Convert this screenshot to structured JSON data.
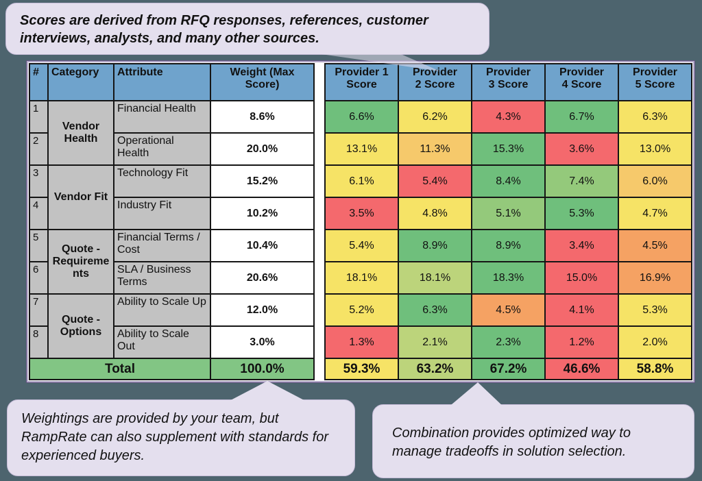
{
  "palette": {
    "green": "#6FBF7C",
    "light_green": "#94C97B",
    "yellow_green": "#BCD47B",
    "yellow": "#F6E366",
    "orange_yellow": "#F6C96B",
    "orange": "#F5A263",
    "red": "#F4696D",
    "header_blue": "#6FA3CC",
    "gray": "#C2C2C2",
    "total_green": "#82C584",
    "frame_purple": "#5E527E",
    "background": "#4D646E",
    "callout_bg": "#E4DFEE"
  },
  "callouts": {
    "top": "Scores are derived from RFQ responses, references, customer interviews, analysts, and many other sources.",
    "bottom_left": "Weightings are provided by your team, but RampRate can also supplement with standards for experienced buyers.",
    "bottom_right": "Combination provides optimized way to manage tradeoffs in solution selection."
  },
  "weights_table": {
    "headers": [
      "#",
      "Category",
      "Attribute",
      "Weight (Max\nScore)"
    ],
    "categories": [
      {
        "name": "Vendor Health"
      },
      {
        "name": "Vendor Fit"
      },
      {
        "name": "Quote - Requirements"
      },
      {
        "name": "Quote - Options"
      }
    ],
    "rows": [
      {
        "num": "1",
        "attribute": "Financial Health",
        "weight": "8.6%"
      },
      {
        "num": "2",
        "attribute": "Operational Health",
        "weight": "20.0%"
      },
      {
        "num": "3",
        "attribute": "Technology Fit",
        "weight": "15.2%"
      },
      {
        "num": "4",
        "attribute": "Industry Fit",
        "weight": "10.2%"
      },
      {
        "num": "5",
        "attribute": "Financial Terms / Cost",
        "weight": "10.4%"
      },
      {
        "num": "6",
        "attribute": "SLA / Business Terms",
        "weight": "20.6%"
      },
      {
        "num": "7",
        "attribute": "Ability to Scale Up",
        "weight": "12.0%"
      },
      {
        "num": "8",
        "attribute": "Ability to Scale Out",
        "weight": "3.0%"
      }
    ],
    "total_label": "Total",
    "total_weight": "100.0%"
  },
  "scores_table": {
    "headers": [
      "Provider 1\nScore",
      "Provider\n2 Score",
      "Provider\n3 Score",
      "Provider\n4 Score",
      "Provider\n5 Score"
    ],
    "rows": [
      {
        "values": [
          "6.6%",
          "6.2%",
          "4.3%",
          "6.7%",
          "6.3%"
        ],
        "colors": [
          "green",
          "yellow",
          "red",
          "green",
          "yellow"
        ]
      },
      {
        "values": [
          "13.1%",
          "11.3%",
          "15.3%",
          "3.6%",
          "13.0%"
        ],
        "colors": [
          "yellow",
          "orange_yellow",
          "green",
          "red",
          "yellow"
        ]
      },
      {
        "values": [
          "6.1%",
          "5.4%",
          "8.4%",
          "7.4%",
          "6.0%"
        ],
        "colors": [
          "yellow",
          "red",
          "green",
          "light_green",
          "orange_yellow"
        ]
      },
      {
        "values": [
          "3.5%",
          "4.8%",
          "5.1%",
          "5.3%",
          "4.7%"
        ],
        "colors": [
          "red",
          "yellow",
          "light_green",
          "green",
          "yellow"
        ]
      },
      {
        "values": [
          "5.4%",
          "8.9%",
          "8.9%",
          "3.4%",
          "4.5%"
        ],
        "colors": [
          "yellow",
          "green",
          "green",
          "red",
          "orange"
        ]
      },
      {
        "values": [
          "18.1%",
          "18.1%",
          "18.3%",
          "15.0%",
          "16.9%"
        ],
        "colors": [
          "yellow",
          "yellow_green",
          "green",
          "red",
          "orange"
        ]
      },
      {
        "values": [
          "5.2%",
          "6.3%",
          "4.5%",
          "4.1%",
          "5.3%"
        ],
        "colors": [
          "yellow",
          "green",
          "orange",
          "red",
          "yellow"
        ]
      },
      {
        "values": [
          "1.3%",
          "2.1%",
          "2.3%",
          "1.2%",
          "2.0%"
        ],
        "colors": [
          "red",
          "yellow_green",
          "green",
          "red",
          "yellow"
        ]
      }
    ],
    "totals": {
      "values": [
        "59.3%",
        "63.2%",
        "67.2%",
        "46.6%",
        "58.8%"
      ],
      "colors": [
        "yellow",
        "yellow_green",
        "green",
        "red",
        "yellow"
      ]
    }
  }
}
